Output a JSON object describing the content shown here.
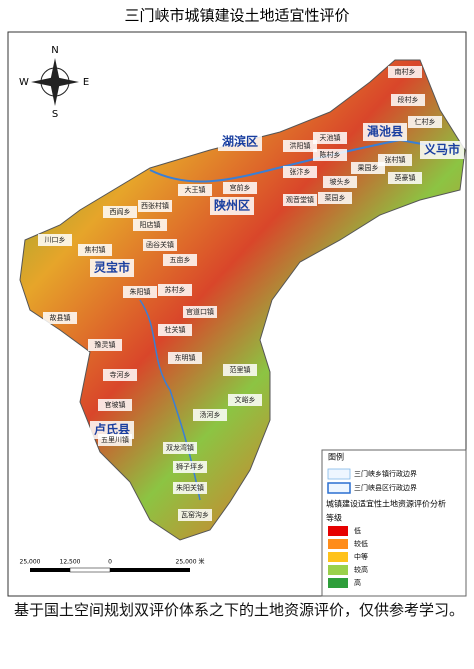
{
  "title": "三门峡市城镇建设土地适宜性评价",
  "compass": {
    "n": "N",
    "s": "S",
    "e": "E",
    "w": "W"
  },
  "districts": [
    "湖滨区",
    "渑池县",
    "义马市",
    "陕州区",
    "灵宝市",
    "卢氏县"
  ],
  "towns": [
    "南村乡",
    "段村乡",
    "仁村乡",
    "天池镇",
    "张村镇",
    "英豪镇",
    "果园乡",
    "陈村乡",
    "洪阳镇",
    "坡头乡",
    "张汴乡",
    "大王镇",
    "西张村镇",
    "菜园乡",
    "观音堂镇",
    "宫前乡",
    "西阎乡",
    "阳店镇",
    "函谷关镇",
    "焦村镇",
    "川口乡",
    "五亩乡",
    "朱阳镇",
    "故县镇",
    "寺河乡",
    "苏村乡",
    "豫灵镇",
    "官道口镇",
    "杜关镇",
    "东明镇",
    "范里镇",
    "官坡镇",
    "双龙湾镇",
    "文峪乡",
    "汤河乡",
    "五里川镇",
    "瓦窑沟乡",
    "朱阳关镇",
    "狮子坪乡"
  ],
  "legend": {
    "title": "图例",
    "boundaries": [
      "三门峡乡镇行政边界",
      "三门峡县区行政边界"
    ],
    "analysis_title": "城镇建设适宜性土地资源评价分析",
    "grade_title": "等级",
    "grades": [
      {
        "label": "低",
        "color": "#e60000"
      },
      {
        "label": "较低",
        "color": "#ff8c1a"
      },
      {
        "label": "中等",
        "color": "#ffc21a"
      },
      {
        "label": "较高",
        "color": "#9ad14b"
      },
      {
        "label": "高",
        "color": "#2e9e3a"
      }
    ]
  },
  "scale": [
    "25,000",
    "12,500",
    "0",
    "25,000 米"
  ],
  "caption": "基于国土空间规划双评价体系之下的土地资源评价，仅供参考学习。"
}
